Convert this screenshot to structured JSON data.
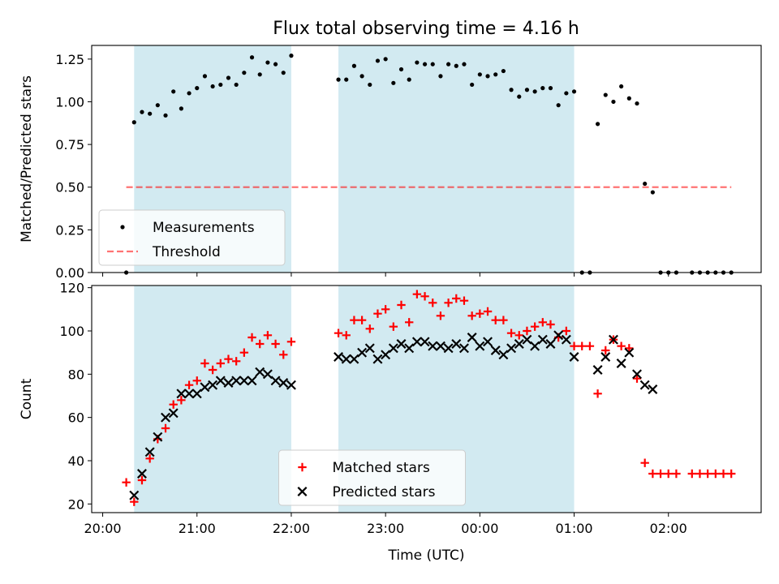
{
  "figure": {
    "title": "Flux total observing time = 4.16 h"
  },
  "chart_data": [
    {
      "type": "scatter",
      "panel": "top",
      "title": "Flux total observing time = 4.16 h",
      "xlabel": "",
      "ylabel": "Matched/Predicted stars",
      "xlim": [
        "19:53",
        "02:59"
      ],
      "ylim": [
        0,
        1.33
      ],
      "yticks": [
        0.0,
        0.25,
        0.5,
        0.75,
        1.0,
        1.25
      ],
      "ytick_labels": [
        "0.00",
        "0.25",
        "0.50",
        "0.75",
        "1.00",
        "1.25"
      ],
      "xticks": [
        "20:00",
        "21:00",
        "22:00",
        "23:00",
        "00:00",
        "01:00",
        "02:00"
      ],
      "show_xtick_labels": false,
      "legend": {
        "position": "lower left"
      },
      "shaded_intervals": [
        {
          "start": "20:20",
          "end": "22:00",
          "color": "#add8e6"
        },
        {
          "start": "22:30",
          "end": "01:00",
          "color": "#add8e6"
        }
      ],
      "series": [
        {
          "name": "Measurements",
          "marker": "dot",
          "color": "#000000",
          "points": [
            [
              "20:15",
              0.0
            ],
            [
              "20:20",
              0.88
            ],
            [
              "20:25",
              0.94
            ],
            [
              "20:30",
              0.93
            ],
            [
              "20:35",
              0.98
            ],
            [
              "20:40",
              0.92
            ],
            [
              "20:45",
              1.06
            ],
            [
              "20:50",
              0.96
            ],
            [
              "20:55",
              1.05
            ],
            [
              "21:00",
              1.08
            ],
            [
              "21:05",
              1.15
            ],
            [
              "21:10",
              1.09
            ],
            [
              "21:15",
              1.1
            ],
            [
              "21:20",
              1.14
            ],
            [
              "21:25",
              1.1
            ],
            [
              "21:30",
              1.17
            ],
            [
              "21:35",
              1.26
            ],
            [
              "21:40",
              1.16
            ],
            [
              "21:45",
              1.23
            ],
            [
              "21:50",
              1.22
            ],
            [
              "21:55",
              1.17
            ],
            [
              "22:00",
              1.27
            ],
            [
              "22:30",
              1.13
            ],
            [
              "22:35",
              1.13
            ],
            [
              "22:40",
              1.21
            ],
            [
              "22:45",
              1.15
            ],
            [
              "22:50",
              1.1
            ],
            [
              "22:55",
              1.24
            ],
            [
              "23:00",
              1.25
            ],
            [
              "23:05",
              1.11
            ],
            [
              "23:10",
              1.19
            ],
            [
              "23:15",
              1.13
            ],
            [
              "23:20",
              1.23
            ],
            [
              "23:25",
              1.22
            ],
            [
              "23:30",
              1.22
            ],
            [
              "23:35",
              1.15
            ],
            [
              "23:40",
              1.22
            ],
            [
              "23:45",
              1.21
            ],
            [
              "23:50",
              1.22
            ],
            [
              "23:55",
              1.1
            ],
            [
              "00:00",
              1.16
            ],
            [
              "00:05",
              1.15
            ],
            [
              "00:10",
              1.16
            ],
            [
              "00:15",
              1.18
            ],
            [
              "00:20",
              1.07
            ],
            [
              "00:25",
              1.03
            ],
            [
              "00:30",
              1.07
            ],
            [
              "00:35",
              1.06
            ],
            [
              "00:40",
              1.08
            ],
            [
              "00:45",
              1.08
            ],
            [
              "00:50",
              0.98
            ],
            [
              "00:55",
              1.05
            ],
            [
              "01:00",
              1.06
            ],
            [
              "01:05",
              0.0
            ],
            [
              "01:10",
              0.0
            ],
            [
              "01:15",
              0.87
            ],
            [
              "01:20",
              1.04
            ],
            [
              "01:25",
              1.0
            ],
            [
              "01:30",
              1.09
            ],
            [
              "01:35",
              1.02
            ],
            [
              "01:40",
              0.99
            ],
            [
              "01:45",
              0.52
            ],
            [
              "01:50",
              0.47
            ],
            [
              "01:55",
              0.0
            ],
            [
              "02:00",
              0.0
            ],
            [
              "02:05",
              0.0
            ],
            [
              "02:15",
              0.0
            ],
            [
              "02:20",
              0.0
            ],
            [
              "02:25",
              0.0
            ],
            [
              "02:30",
              0.0
            ],
            [
              "02:35",
              0.0
            ],
            [
              "02:40",
              0.0
            ]
          ]
        },
        {
          "name": "Threshold",
          "marker": "dashed-line",
          "color": "#ff0000",
          "points": [
            [
              "20:15",
              0.5
            ],
            [
              "02:40",
              0.5
            ]
          ]
        }
      ]
    },
    {
      "type": "scatter",
      "panel": "bottom",
      "title": "",
      "xlabel": "Time (UTC)",
      "ylabel": "Count",
      "xlim": [
        "19:53",
        "02:59"
      ],
      "ylim": [
        16,
        121
      ],
      "yticks": [
        20,
        40,
        60,
        80,
        100,
        120
      ],
      "ytick_labels": [
        "20",
        "40",
        "60",
        "80",
        "100",
        "120"
      ],
      "xticks": [
        "20:00",
        "21:00",
        "22:00",
        "23:00",
        "00:00",
        "01:00",
        "02:00"
      ],
      "xtick_labels": [
        "20:00",
        "21:00",
        "22:00",
        "23:00",
        "00:00",
        "01:00",
        "02:00"
      ],
      "show_xtick_labels": true,
      "legend": {
        "position": "lower center"
      },
      "shaded_intervals": [
        {
          "start": "20:20",
          "end": "22:00",
          "color": "#add8e6"
        },
        {
          "start": "22:30",
          "end": "01:00",
          "color": "#add8e6"
        }
      ],
      "series": [
        {
          "name": "Matched stars",
          "marker": "plus",
          "color": "#ff0000",
          "points": [
            [
              "20:15",
              30
            ],
            [
              "20:20",
              21
            ],
            [
              "20:25",
              31
            ],
            [
              "20:30",
              41
            ],
            [
              "20:35",
              50
            ],
            [
              "20:40",
              55
            ],
            [
              "20:45",
              66
            ],
            [
              "20:50",
              68
            ],
            [
              "20:55",
              75
            ],
            [
              "21:00",
              77
            ],
            [
              "21:05",
              85
            ],
            [
              "21:10",
              82
            ],
            [
              "21:15",
              85
            ],
            [
              "21:20",
              87
            ],
            [
              "21:25",
              86
            ],
            [
              "21:30",
              90
            ],
            [
              "21:35",
              97
            ],
            [
              "21:40",
              94
            ],
            [
              "21:45",
              98
            ],
            [
              "21:50",
              94
            ],
            [
              "21:55",
              89
            ],
            [
              "22:00",
              95
            ],
            [
              "22:30",
              99
            ],
            [
              "22:35",
              98
            ],
            [
              "22:40",
              105
            ],
            [
              "22:45",
              105
            ],
            [
              "22:50",
              101
            ],
            [
              "22:55",
              108
            ],
            [
              "23:00",
              110
            ],
            [
              "23:05",
              102
            ],
            [
              "23:10",
              112
            ],
            [
              "23:15",
              104
            ],
            [
              "23:20",
              117
            ],
            [
              "23:25",
              116
            ],
            [
              "23:30",
              113
            ],
            [
              "23:35",
              107
            ],
            [
              "23:40",
              113
            ],
            [
              "23:45",
              115
            ],
            [
              "23:50",
              114
            ],
            [
              "23:55",
              107
            ],
            [
              "00:00",
              108
            ],
            [
              "00:05",
              109
            ],
            [
              "00:10",
              105
            ],
            [
              "00:15",
              105
            ],
            [
              "00:20",
              99
            ],
            [
              "00:25",
              98
            ],
            [
              "00:30",
              100
            ],
            [
              "00:35",
              102
            ],
            [
              "00:40",
              104
            ],
            [
              "00:45",
              103
            ],
            [
              "00:50",
              97
            ],
            [
              "00:55",
              100
            ],
            [
              "01:00",
              93
            ],
            [
              "01:05",
              93
            ],
            [
              "01:10",
              93
            ],
            [
              "01:15",
              71
            ],
            [
              "01:20",
              91
            ],
            [
              "01:25",
              96
            ],
            [
              "01:30",
              93
            ],
            [
              "01:35",
              92
            ],
            [
              "01:40",
              78
            ],
            [
              "01:45",
              39
            ],
            [
              "01:50",
              34
            ],
            [
              "01:55",
              34
            ],
            [
              "02:00",
              34
            ],
            [
              "02:05",
              34
            ],
            [
              "02:15",
              34
            ],
            [
              "02:20",
              34
            ],
            [
              "02:25",
              34
            ],
            [
              "02:30",
              34
            ],
            [
              "02:35",
              34
            ],
            [
              "02:40",
              34
            ]
          ]
        },
        {
          "name": "Predicted stars",
          "marker": "x",
          "color": "#000000",
          "points": [
            [
              "20:20",
              24
            ],
            [
              "20:25",
              34
            ],
            [
              "20:30",
              44
            ],
            [
              "20:35",
              51
            ],
            [
              "20:40",
              60
            ],
            [
              "20:45",
              62
            ],
            [
              "20:50",
              71
            ],
            [
              "20:55",
              71
            ],
            [
              "21:00",
              71
            ],
            [
              "21:05",
              74
            ],
            [
              "21:10",
              75
            ],
            [
              "21:15",
              77
            ],
            [
              "21:20",
              76
            ],
            [
              "21:25",
              77
            ],
            [
              "21:30",
              77
            ],
            [
              "21:35",
              77
            ],
            [
              "21:40",
              81
            ],
            [
              "21:45",
              80
            ],
            [
              "21:50",
              77
            ],
            [
              "21:55",
              76
            ],
            [
              "22:00",
              75
            ],
            [
              "22:30",
              88
            ],
            [
              "22:35",
              87
            ],
            [
              "22:40",
              87
            ],
            [
              "22:45",
              90
            ],
            [
              "22:50",
              92
            ],
            [
              "22:55",
              87
            ],
            [
              "23:00",
              89
            ],
            [
              "23:05",
              92
            ],
            [
              "23:10",
              94
            ],
            [
              "23:15",
              92
            ],
            [
              "23:20",
              95
            ],
            [
              "23:25",
              95
            ],
            [
              "23:30",
              93
            ],
            [
              "23:35",
              93
            ],
            [
              "23:40",
              92
            ],
            [
              "23:45",
              94
            ],
            [
              "23:50",
              92
            ],
            [
              "23:55",
              97
            ],
            [
              "00:00",
              93
            ],
            [
              "00:05",
              95
            ],
            [
              "00:10",
              91
            ],
            [
              "00:15",
              89
            ],
            [
              "00:20",
              92
            ],
            [
              "00:25",
              94
            ],
            [
              "00:30",
              96
            ],
            [
              "00:35",
              93
            ],
            [
              "00:40",
              96
            ],
            [
              "00:45",
              94
            ],
            [
              "00:50",
              98
            ],
            [
              "00:55",
              96
            ],
            [
              "01:00",
              88
            ],
            [
              "01:15",
              82
            ],
            [
              "01:20",
              88
            ],
            [
              "01:25",
              96
            ],
            [
              "01:30",
              85
            ],
            [
              "01:35",
              90
            ],
            [
              "01:40",
              80
            ],
            [
              "01:45",
              75
            ],
            [
              "01:50",
              73
            ]
          ]
        }
      ]
    }
  ]
}
